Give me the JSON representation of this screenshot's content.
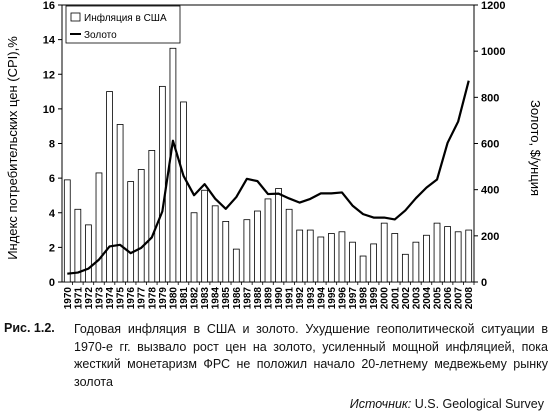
{
  "chart_data": {
    "type": "bar+line",
    "categories": [
      "1970",
      "1971",
      "1972",
      "1973",
      "1974",
      "1975",
      "1976",
      "1977",
      "1978",
      "1979",
      "1980",
      "1981",
      "1982",
      "1983",
      "1984",
      "1985",
      "1986",
      "1987",
      "1988",
      "1989",
      "1990",
      "1991",
      "1992",
      "1993",
      "1994",
      "1995",
      "1996",
      "1997",
      "1998",
      "1999",
      "2000",
      "2001",
      "2002",
      "2003",
      "2004",
      "2005",
      "2006",
      "2007",
      "2008"
    ],
    "series": [
      {
        "name": "Инфляция в США",
        "kind": "bar",
        "axis": "left",
        "values": [
          5.9,
          4.2,
          3.3,
          6.3,
          11.0,
          9.1,
          5.8,
          6.5,
          7.6,
          11.3,
          13.5,
          10.4,
          4.0,
          5.3,
          4.4,
          3.5,
          1.9,
          3.6,
          4.1,
          4.8,
          5.4,
          4.2,
          3.0,
          3.0,
          2.6,
          2.8,
          2.9,
          2.3,
          1.5,
          2.2,
          3.4,
          2.8,
          1.6,
          2.3,
          2.7,
          3.4,
          3.2,
          2.9,
          3.0
        ]
      },
      {
        "name": "Золото",
        "kind": "line",
        "axis": "right",
        "values": [
          36,
          41,
          58,
          97,
          154,
          161,
          125,
          148,
          193,
          306,
          612,
          460,
          376,
          424,
          361,
          317,
          368,
          447,
          437,
          381,
          383,
          362,
          344,
          360,
          384,
          384,
          388,
          331,
          294,
          279,
          279,
          271,
          310,
          363,
          409,
          444,
          603,
          695,
          872
        ]
      }
    ],
    "left_axis": {
      "label": "Индекс потребительских цен (CPI),%",
      "min": 0,
      "max": 16,
      "ticks": [
        "0",
        "2",
        "4",
        "6",
        "8",
        "10",
        "12",
        "14",
        "16"
      ]
    },
    "right_axis": {
      "label": "Золото, $/унция",
      "min": 0,
      "max": 1200,
      "ticks": [
        "0",
        "200",
        "400",
        "600",
        "800",
        "1000",
        "1200"
      ]
    },
    "legend": {
      "position": "top-left"
    }
  },
  "caption": {
    "label": "Рис. 1.2.",
    "text": "Годовая инфляция в США и золото. Ухудшение геополитической ситуации в 1970-е гг. вызвало рост цен на золото, усиленный мощной инфляцией, пока жесткий монетаризм ФРС не положил начало 20-летнему медвежьему рынку золота",
    "source_label": "Источник:",
    "source_value": "U.S. Geological Survey"
  }
}
